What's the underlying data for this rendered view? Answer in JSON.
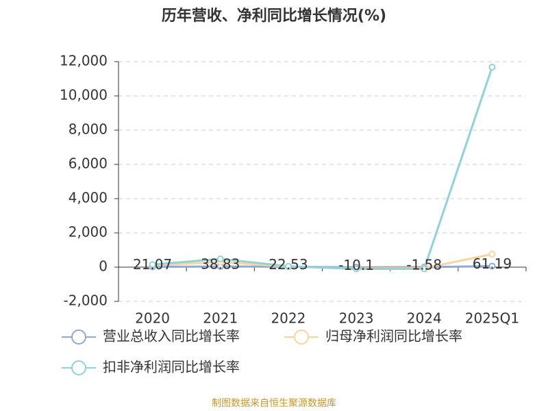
{
  "chart_data": {
    "type": "line",
    "title": "历年营收、净利同比增长情况(%)",
    "source": "制图数据来自恒生聚源数据库",
    "categories": [
      "2020",
      "2021",
      "2022",
      "2023",
      "2024",
      "2025Q1"
    ],
    "series": [
      {
        "name": "营业总收入同比增长率",
        "color": "#8fa8d8",
        "values": [
          21.07,
          38.83,
          22.53,
          -10.1,
          -1.58,
          61.19
        ],
        "show_labels": true
      },
      {
        "name": "归母净利润同比增长率",
        "color": "#fbd49b",
        "values": [
          100,
          300,
          30,
          -80,
          -60,
          760
        ]
      },
      {
        "name": "扣非净利润同比增长率",
        "color": "#8ed3d8",
        "values": [
          150,
          480,
          50,
          -100,
          -100,
          11680
        ]
      }
    ],
    "ylim": [
      -2000,
      12000
    ],
    "yticks": [
      {
        "value": -2000,
        "label": "-2,000"
      },
      0,
      {
        "value": 2000,
        "label": "2,000"
      },
      {
        "value": 4000,
        "label": "4,000"
      },
      {
        "value": 6000,
        "label": "6,000"
      },
      {
        "value": 8000,
        "label": "8,000"
      },
      {
        "value": 10000,
        "label": "10,000"
      },
      {
        "value": 12000,
        "label": "12,000"
      }
    ],
    "grid": true
  }
}
